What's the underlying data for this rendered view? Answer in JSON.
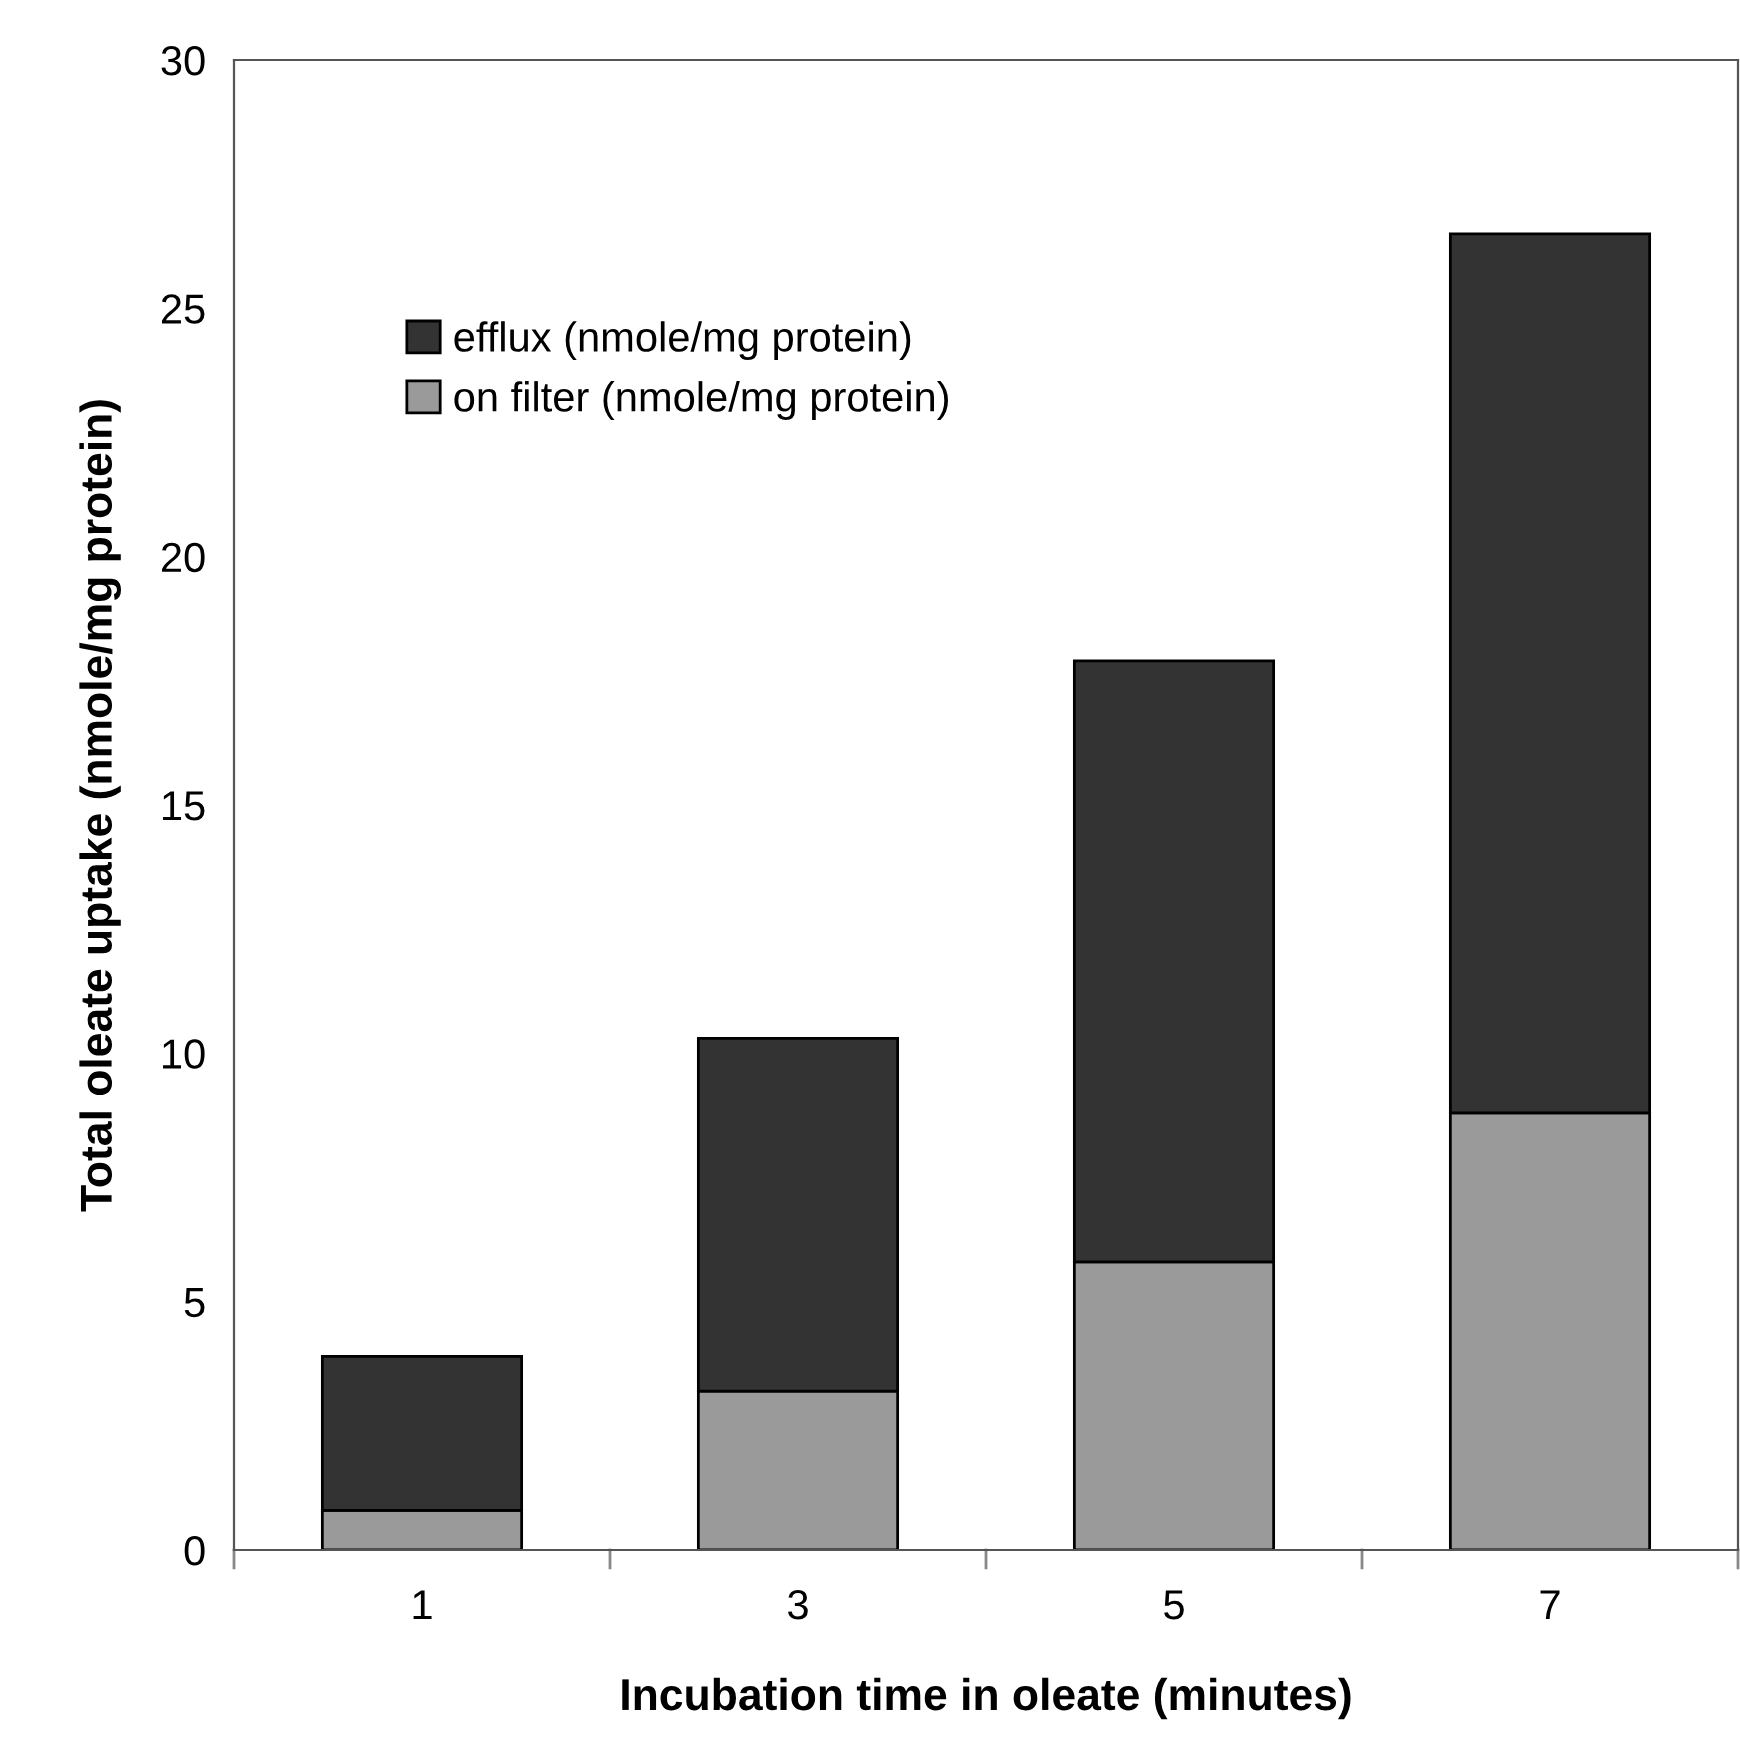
{
  "chart_data": {
    "type": "bar",
    "stacked": true,
    "xlabel": "Incubation time in oleate (minutes)",
    "ylabel": "Total oleate uptake (nmole/mg protein)",
    "categories": [
      "1",
      "3",
      "5",
      "7"
    ],
    "series": [
      {
        "name": "on filter (nmole/mg protein)",
        "color": "#9a9a9a",
        "values": [
          0.8,
          3.2,
          5.8,
          8.8
        ]
      },
      {
        "name": "efflux (nmole/mg protein)",
        "color": "#333333",
        "values": [
          3.1,
          7.1,
          12.1,
          17.7
        ]
      }
    ],
    "ylim": [
      0,
      30
    ],
    "yticks": [
      0,
      5,
      10,
      15,
      20,
      25,
      30
    ],
    "grid": false,
    "legend": "top left"
  }
}
